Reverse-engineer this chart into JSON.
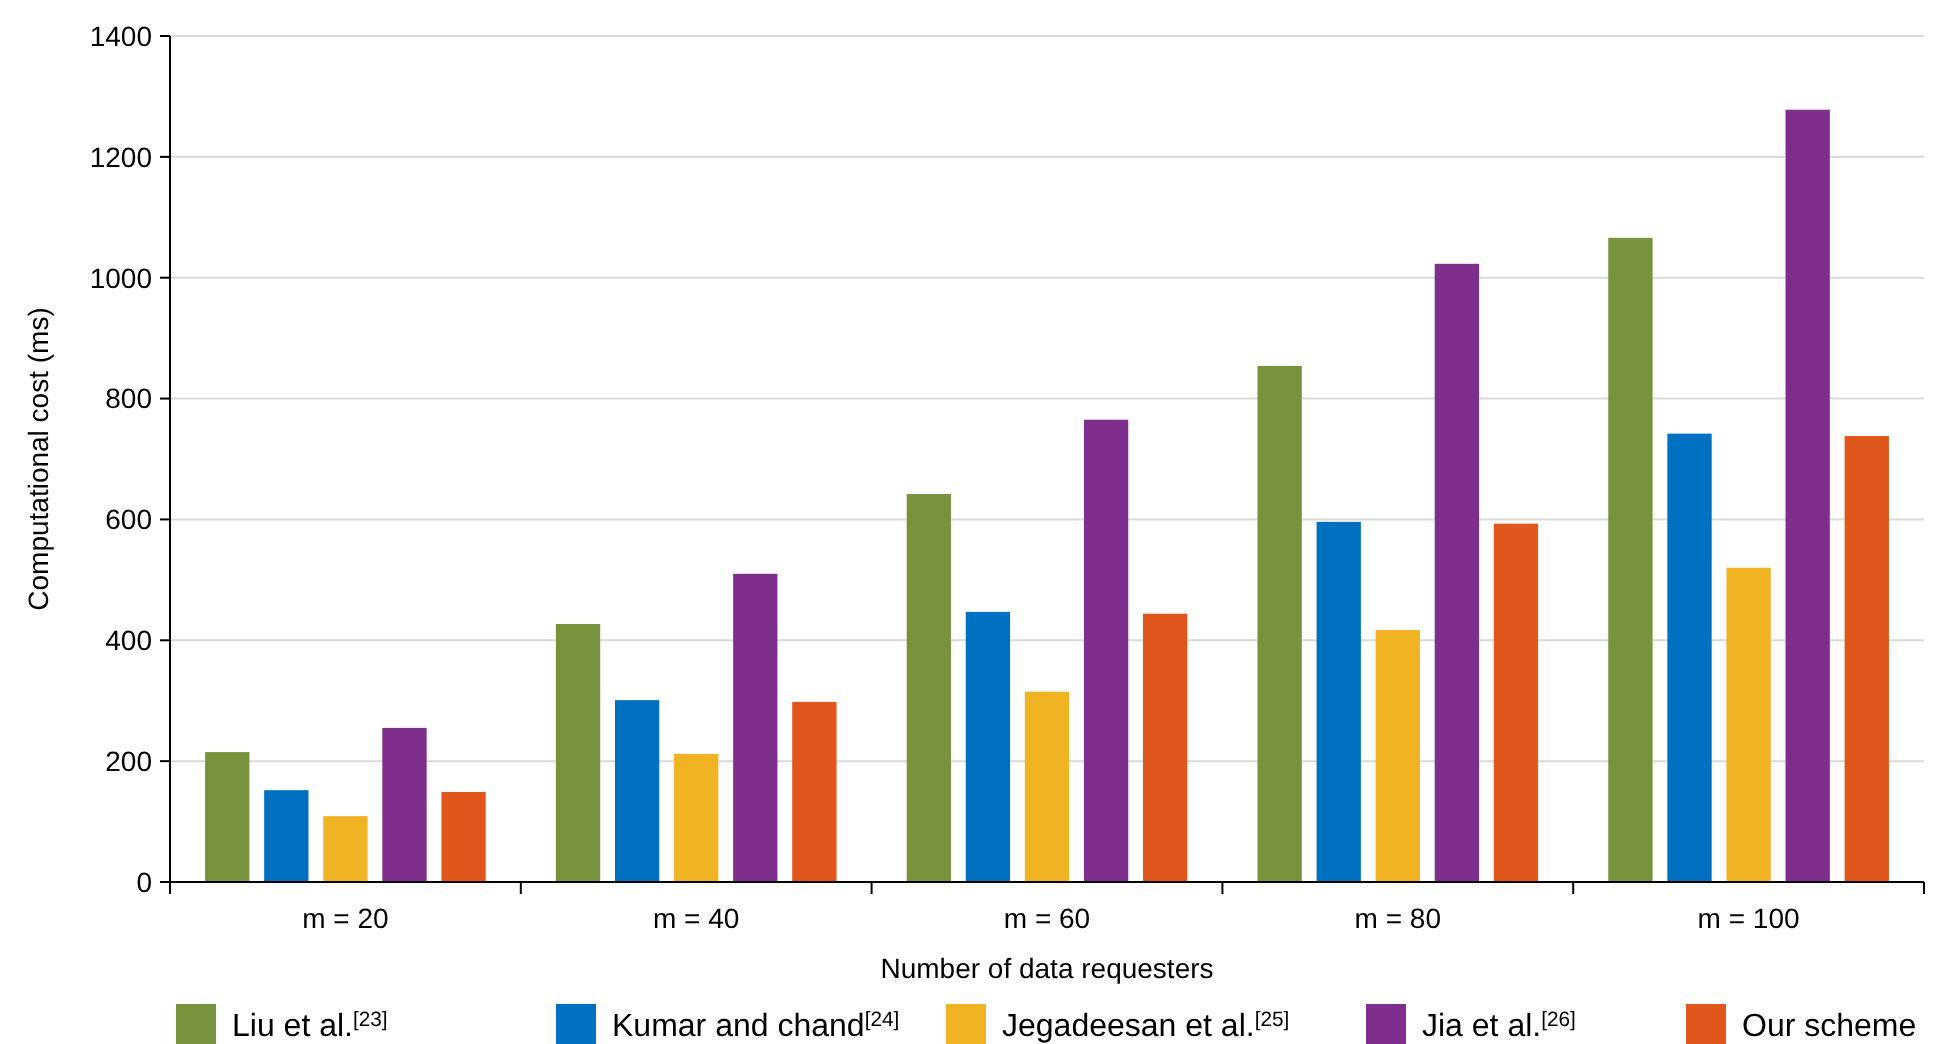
{
  "chart_data": {
    "type": "bar",
    "xlabel": "Number of data requesters",
    "ylabel": "Computational cost (ms)",
    "categories": [
      "m = 20",
      "m = 40",
      "m = 60",
      "m = 80",
      "m = 100"
    ],
    "series": [
      {
        "name": "Liu et al.$^{[23]}$",
        "color": "#77933c",
        "values": [
          215,
          427,
          642,
          854,
          1066
        ]
      },
      {
        "name": "Kumar and chand$^{[24]}$",
        "color": "#0070c0",
        "values": [
          152,
          301,
          447,
          596,
          742
        ]
      },
      {
        "name": "Jegadeesan et al.$^{[25]}$",
        "color": "#f0b323",
        "values": [
          109,
          212,
          315,
          417,
          520
        ]
      },
      {
        "name": "Jia et al.$^{[26]}$",
        "color": "#7e2f8e",
        "values": [
          255,
          510,
          765,
          1023,
          1278
        ]
      },
      {
        "name": "Our scheme",
        "color": "#e0561b",
        "values": [
          149,
          298,
          444,
          593,
          738
        ]
      }
    ],
    "ylim": [
      0,
      1400
    ],
    "yticks": [
      0,
      200,
      400,
      600,
      800,
      1000,
      1200,
      1400
    ],
    "grid": "y",
    "legend": "bottom"
  }
}
